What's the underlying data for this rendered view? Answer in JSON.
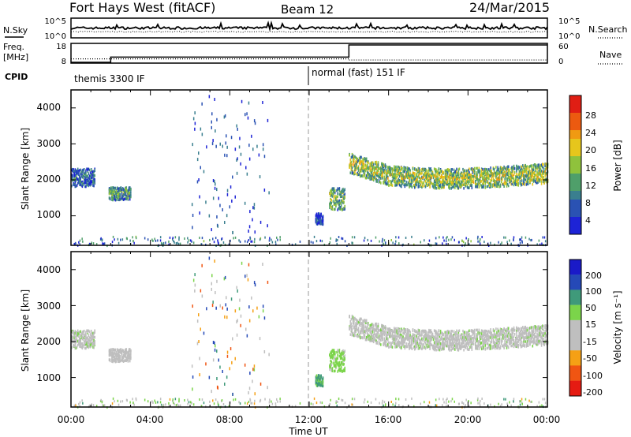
{
  "header": {
    "station": "Fort Hays West (fitACF)",
    "beam": "Beam 12",
    "date": "24/Mar/2015"
  },
  "noise_panel": {
    "left_label": "N.Sky",
    "right_label": "N.Search",
    "left_ticks": [
      "10^5",
      "10^0"
    ],
    "right_ticks": [
      "10^5",
      "10^0"
    ]
  },
  "freq_panel": {
    "left_label_line1": "Freq.",
    "left_label_line2": "[MHz]",
    "right_label": "Nave",
    "left_ticks": [
      "18",
      "8"
    ],
    "right_ticks": [
      "60",
      "0"
    ]
  },
  "cpid_panel": {
    "label": "CPID",
    "segments": [
      {
        "start_hour": 0,
        "end_hour": 12,
        "text": "themis 3300 IF"
      },
      {
        "start_hour": 12,
        "end_hour": 24,
        "text": "normal (fast) 151 IF"
      }
    ]
  },
  "power_panel": {
    "ylabel": "Slant Range [km]",
    "yticks": [
      "4000",
      "3000",
      "2000",
      "1000"
    ],
    "colorbar_label": "Power [dB]",
    "colorbar_ticks": [
      "28",
      "24",
      "20",
      "16",
      "12",
      "8",
      "4"
    ]
  },
  "velocity_panel": {
    "ylabel": "Slant Range [km]",
    "yticks": [
      "4000",
      "3000",
      "2000",
      "1000"
    ],
    "colorbar_label": "Velocity [m s⁻¹]",
    "colorbar_ticks": [
      "200",
      "100",
      "50",
      "15",
      "-15",
      "-50",
      "-100",
      "-200"
    ]
  },
  "xaxis": {
    "label": "Time UT",
    "ticks": [
      "00:00",
      "04:00",
      "08:00",
      "12:00",
      "16:00",
      "20:00",
      "00:00"
    ]
  },
  "chart_data": {
    "type": "heatmap",
    "x_unit": "hours UT",
    "xlim": [
      0,
      24
    ],
    "ylim_km": [
      180,
      4500
    ],
    "frequency_mhz": [
      {
        "start_hour": 0,
        "end_hour": 2,
        "value": 8
      },
      {
        "start_hour": 2,
        "end_hour": 14,
        "value": 11
      },
      {
        "start_hour": 14,
        "end_hour": 24,
        "value": 18
      }
    ],
    "nave": [
      {
        "start_hour": 0,
        "end_hour": 2,
        "value": 12
      },
      {
        "start_hour": 2,
        "end_hour": 14,
        "value": 12
      },
      {
        "start_hour": 14,
        "end_hour": 24,
        "value": 8
      }
    ],
    "power_db_range": [
      0,
      30
    ],
    "velocity_range": [
      -200,
      200
    ],
    "scatter_regions": [
      {
        "t_start": 0.0,
        "t_end": 1.2,
        "range_center_km": 2100,
        "range_width_km": 500,
        "power_db": 8,
        "velocity": 0
      },
      {
        "t_start": 1.9,
        "t_end": 3.0,
        "range_center_km": 1650,
        "range_width_km": 350,
        "power_db": 12,
        "velocity": -20
      },
      {
        "t_start": 13.0,
        "t_end": 13.8,
        "range_center_km": 1500,
        "range_width_km": 600,
        "power_db": 14,
        "velocity": 30
      },
      {
        "t_start": 12.3,
        "t_end": 12.7,
        "range_center_km": 950,
        "range_width_km": 300,
        "power_db": 6,
        "velocity": 60
      },
      {
        "t_start": 14.0,
        "t_end": 24.0,
        "range_center_km": 2150,
        "range_width_km": 550,
        "power_db": 16,
        "velocity": 0
      }
    ]
  }
}
